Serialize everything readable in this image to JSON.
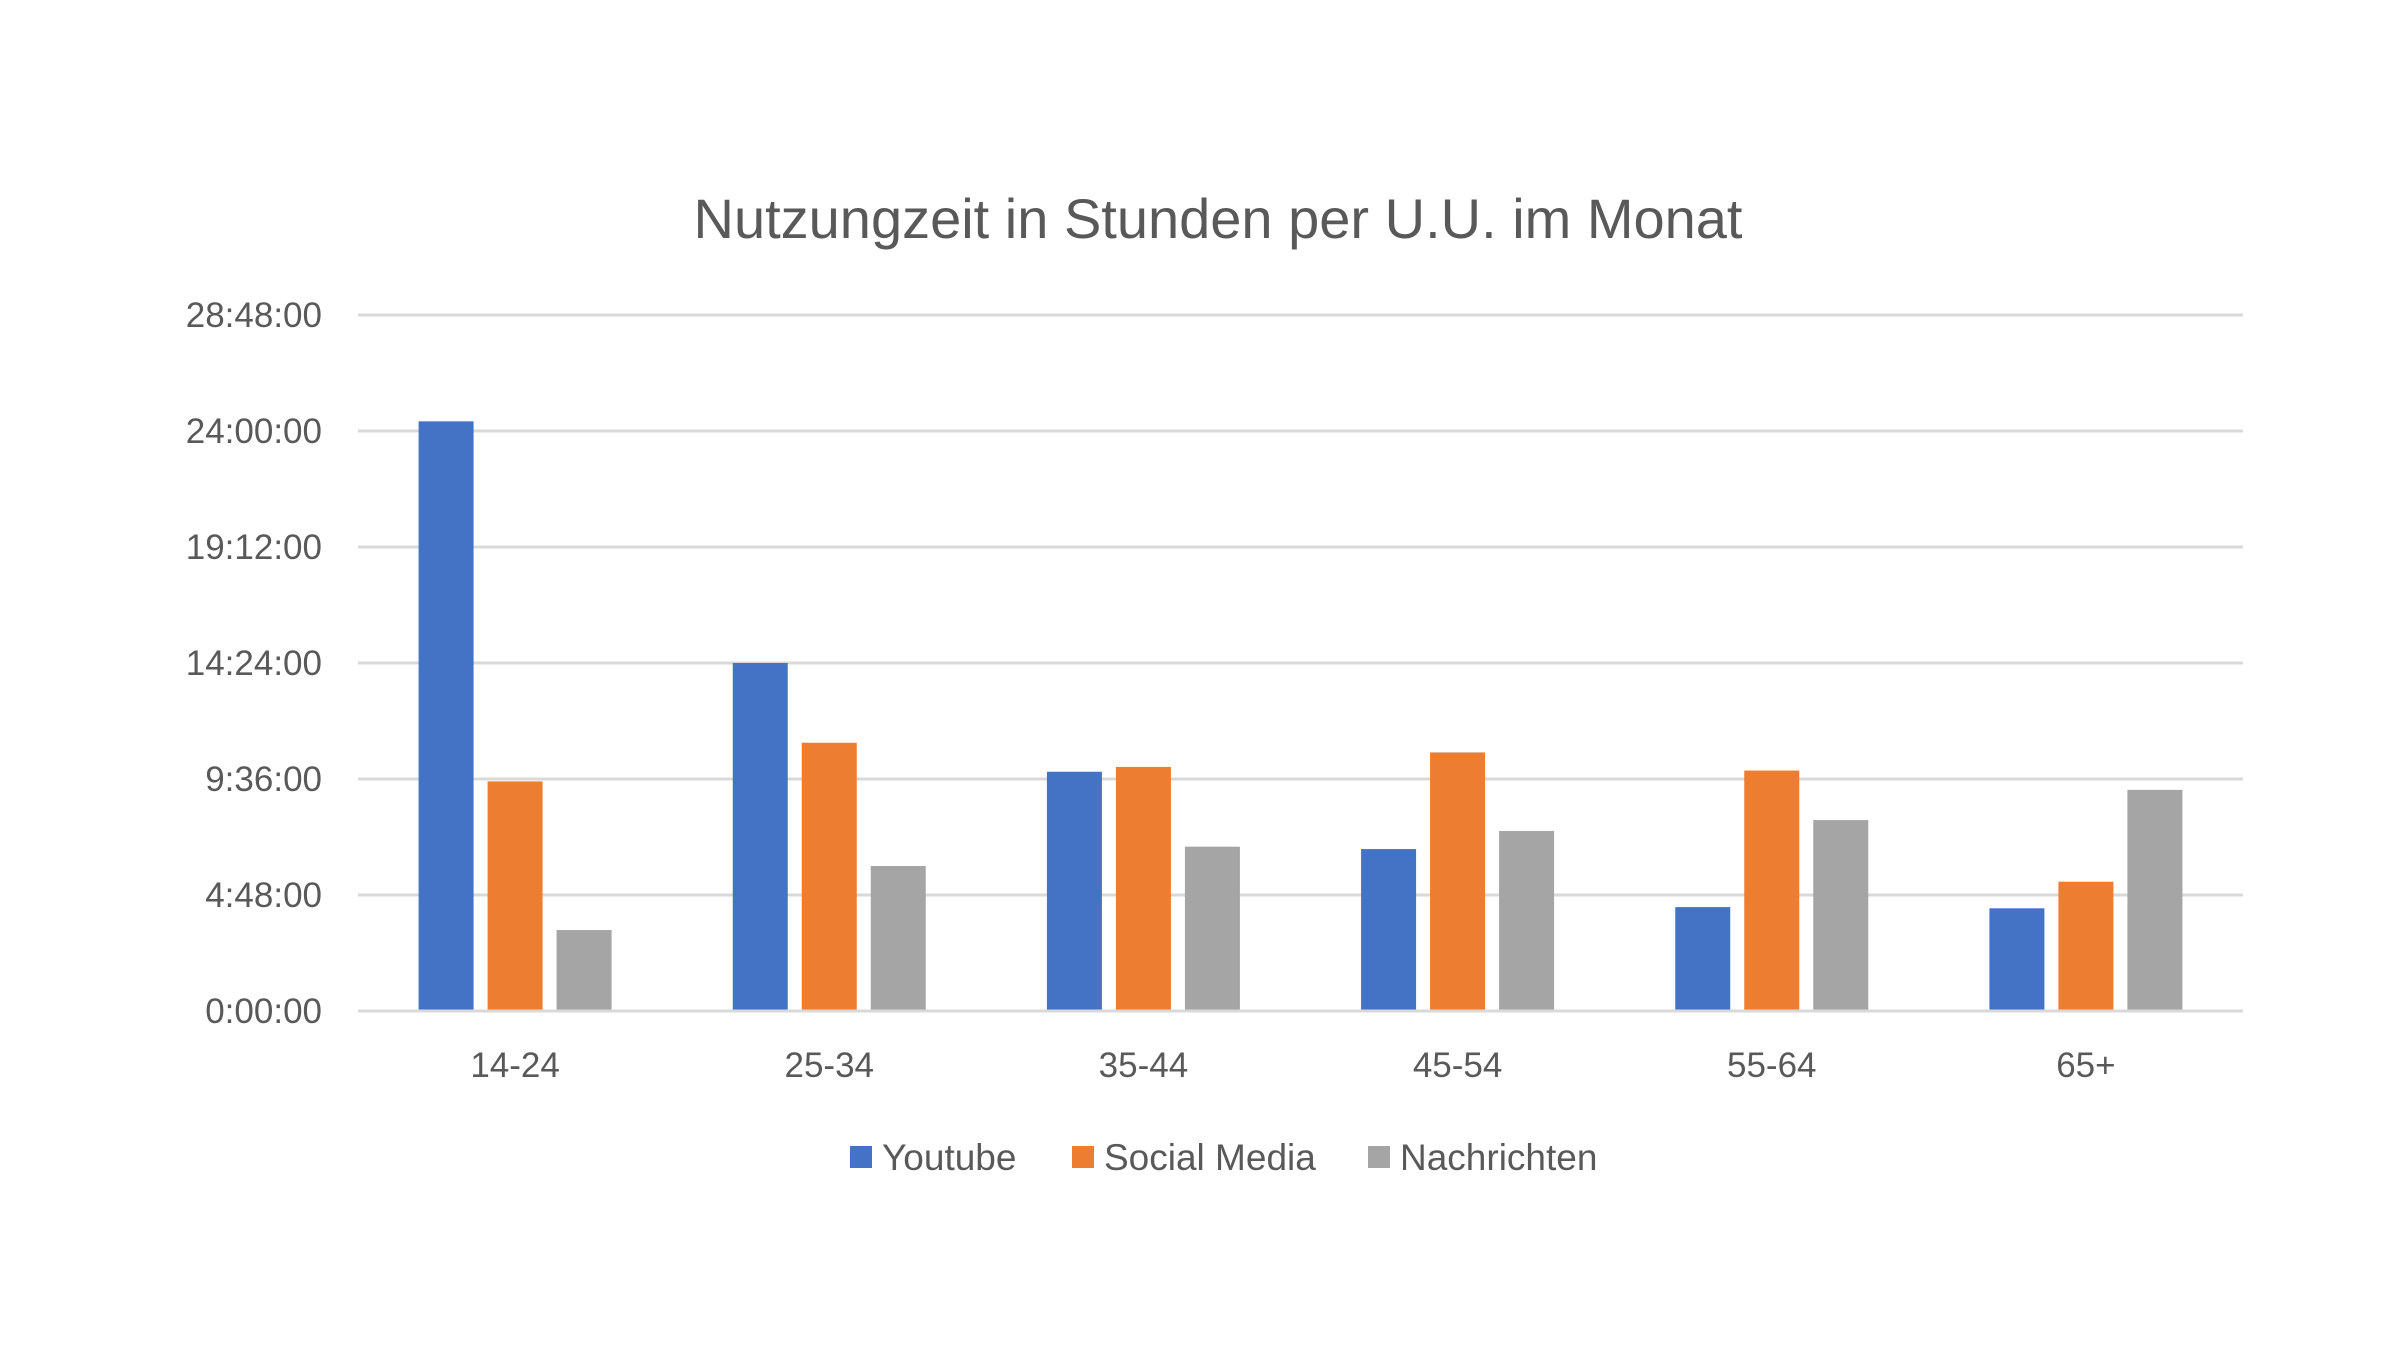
{
  "chart_data": {
    "type": "bar",
    "title": "Nutzungzeit in Stunden per U.U. im Monat",
    "categories": [
      "14-24",
      "25-34",
      "35-44",
      "45-54",
      "55-64",
      "65+"
    ],
    "y_ticks": [
      "0:00:00",
      "4:48:00",
      "9:36:00",
      "14:24:00",
      "19:12:00",
      "24:00:00",
      "28:48:00"
    ],
    "ylim_hours": [
      0,
      28.8
    ],
    "series": [
      {
        "name": "Youtube",
        "color": "#4472c4",
        "values_hours": [
          24.4,
          14.4,
          9.9,
          6.7,
          4.3,
          4.25
        ]
      },
      {
        "name": "Social Media",
        "color": "#ed7d31",
        "values_hours": [
          9.5,
          11.1,
          10.1,
          10.7,
          9.95,
          5.35
        ]
      },
      {
        "name": "Nachrichten",
        "color": "#a5a5a5",
        "values_hours": [
          3.35,
          6.0,
          6.8,
          7.45,
          7.9,
          9.15
        ]
      }
    ],
    "xlabel": "",
    "ylabel": "",
    "grid": true,
    "legend_position": "bottom"
  }
}
